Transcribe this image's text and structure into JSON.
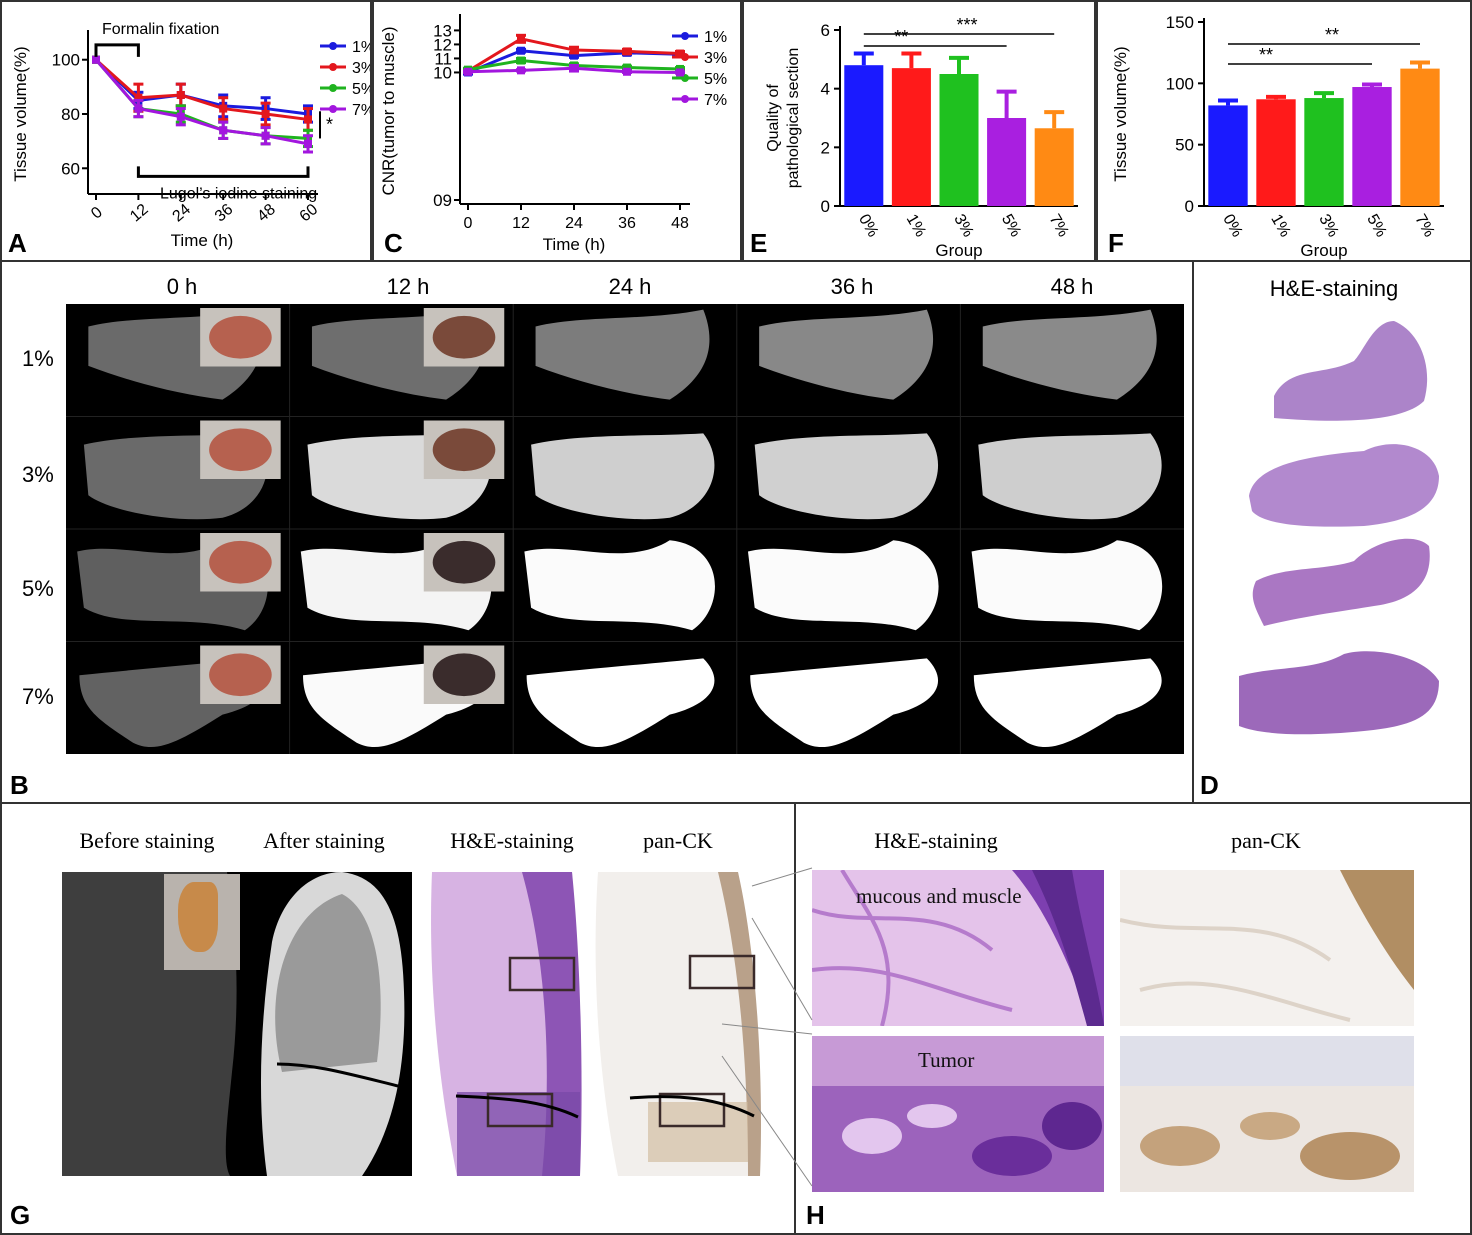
{
  "panels": {
    "A": "A",
    "B": "B",
    "C": "C",
    "D": "D",
    "E": "E",
    "F": "F",
    "G": "G",
    "H": "H"
  },
  "chart_data": [
    {
      "type": "line",
      "panel": "A",
      "x": [
        0,
        12,
        24,
        36,
        48,
        60
      ],
      "xlabel": "Time (h)",
      "ylabel": "Tissue volume(%)",
      "ylim": [
        52,
        108
      ],
      "yticks": [
        60,
        80,
        100
      ],
      "annotations": [
        "Formalin fixation",
        "Lugol’s iodine staining",
        "*"
      ],
      "series": [
        {
          "name": "1%",
          "color": "#1b1bde",
          "values": [
            100,
            85,
            87,
            83,
            82,
            80
          ],
          "err": [
            0,
            3,
            4,
            4,
            4,
            3
          ]
        },
        {
          "name": "3%",
          "color": "#e3171d",
          "values": [
            100,
            86,
            87,
            82,
            80,
            78
          ],
          "err": [
            0,
            5,
            4,
            4,
            4,
            4
          ]
        },
        {
          "name": "5%",
          "color": "#1fb31f",
          "values": [
            100,
            82,
            80,
            74,
            72,
            71
          ],
          "err": [
            0,
            3,
            3,
            3,
            3,
            3
          ]
        },
        {
          "name": "7%",
          "color": "#a216de",
          "values": [
            100,
            82,
            79,
            74,
            72,
            69
          ],
          "err": [
            0,
            3,
            3,
            3,
            3,
            3
          ]
        }
      ]
    },
    {
      "type": "line",
      "panel": "C",
      "x": [
        0,
        12,
        24,
        36,
        48
      ],
      "xlabel": "Time (h)",
      "ylabel": "CNR(tumor to muscle)",
      "ylim": [
        0.9,
        13.6
      ],
      "yticks": [
        {
          "v": 0.9,
          "t": "09"
        },
        {
          "v": 10,
          "t": "10"
        },
        {
          "v": 11,
          "t": "11"
        },
        {
          "v": 12,
          "t": "12"
        },
        {
          "v": 13,
          "t": "13"
        }
      ],
      "series": [
        {
          "name": "1%",
          "color": "#1b1bde",
          "values": [
            10,
            11.55,
            11.2,
            11.4,
            11.3
          ],
          "err": [
            0.12,
            0.1,
            0.12,
            0.15,
            0.15
          ]
        },
        {
          "name": "3%",
          "color": "#e3171d",
          "values": [
            10.1,
            12.4,
            11.6,
            11.5,
            11.35
          ],
          "err": [
            0.1,
            0.25,
            0.2,
            0.15,
            0.15
          ]
        },
        {
          "name": "5%",
          "color": "#1fb31f",
          "values": [
            10.2,
            10.85,
            10.5,
            10.35,
            10.25
          ],
          "err": [
            0.1,
            0.15,
            0.12,
            0.1,
            0.1
          ]
        },
        {
          "name": "7%",
          "color": "#a216de",
          "values": [
            10.05,
            10.15,
            10.3,
            10.05,
            10.0
          ],
          "err": [
            0.05,
            0.05,
            0.2,
            0.05,
            0.05
          ]
        }
      ]
    },
    {
      "type": "bar",
      "panel": "E",
      "categories": [
        "0%",
        "1%",
        "3%",
        "5%",
        "7%"
      ],
      "values": [
        4.8,
        4.7,
        4.5,
        3.0,
        2.65
      ],
      "err": [
        0.4,
        0.5,
        0.55,
        0.9,
        0.55
      ],
      "colors": [
        "#1a1aff",
        "#ff1a1a",
        "#1fc11f",
        "#a91fe0",
        "#ff8a14"
      ],
      "xlabel": "Group",
      "ylabel": "Quality of pathological section",
      "ylim": [
        0,
        6
      ],
      "yticks": [
        0,
        2,
        4,
        6
      ],
      "significance": [
        {
          "from": "0%",
          "to": "5%",
          "label": "**"
        },
        {
          "from": "0%",
          "to": "7%",
          "label": "***"
        }
      ]
    },
    {
      "type": "bar",
      "panel": "F",
      "categories": [
        "0%",
        "1%",
        "3%",
        "5%",
        "7%"
      ],
      "values": [
        82,
        87,
        88,
        97,
        112
      ],
      "err": [
        4,
        2,
        4,
        2,
        5
      ],
      "colors": [
        "#1a1aff",
        "#ff1a1a",
        "#1fc11f",
        "#a91fe0",
        "#ff8a14"
      ],
      "xlabel": "Group",
      "ylabel": "Tissue volume(%)",
      "ylim": [
        0,
        150
      ],
      "yticks": [
        0,
        50,
        100,
        150
      ],
      "significance": [
        {
          "from": "0%",
          "to": "5%",
          "label": "**"
        },
        {
          "from": "0%",
          "to": "7%",
          "label": "**"
        }
      ]
    }
  ],
  "panelB": {
    "time_headers": [
      "0 h",
      "12 h",
      "24 h",
      "36 h",
      "48 h"
    ],
    "row_labels": [
      "1%",
      "3%",
      "5%",
      "7%"
    ]
  },
  "panelD": {
    "title": "H&E-staining"
  },
  "panelG": {
    "headers": [
      "Before staining",
      "After staining",
      "H&E-staining",
      "pan-CK"
    ]
  },
  "panelH": {
    "headers": [
      "H&E-staining",
      "pan-CK"
    ],
    "labels": [
      "mucous and muscle",
      "Tumor"
    ]
  }
}
